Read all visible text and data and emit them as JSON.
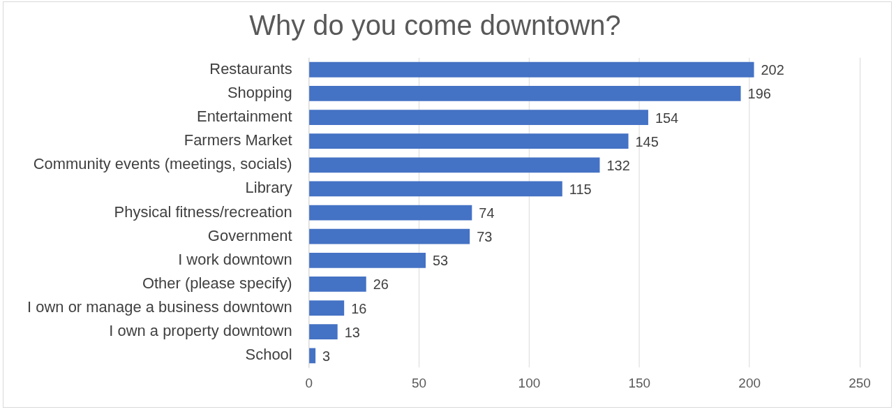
{
  "chart_data": {
    "type": "bar",
    "orientation": "horizontal",
    "title": "Why do you come downtown?",
    "categories": [
      "Restaurants",
      "Shopping",
      "Entertainment",
      "Farmers Market",
      "Community events (meetings, socials)",
      "Library",
      "Physical fitness/recreation",
      "Government",
      "I work downtown",
      "Other (please specify)",
      "I own or manage a business downtown",
      "I own a property downtown",
      "School"
    ],
    "values": [
      202,
      196,
      154,
      145,
      132,
      115,
      74,
      73,
      53,
      26,
      16,
      13,
      3
    ],
    "color": "#4472c4",
    "xlim": [
      0,
      250
    ],
    "xticks": [
      0,
      50,
      100,
      150,
      200,
      250
    ],
    "grid": "x",
    "data_labels": true,
    "legend": false
  }
}
